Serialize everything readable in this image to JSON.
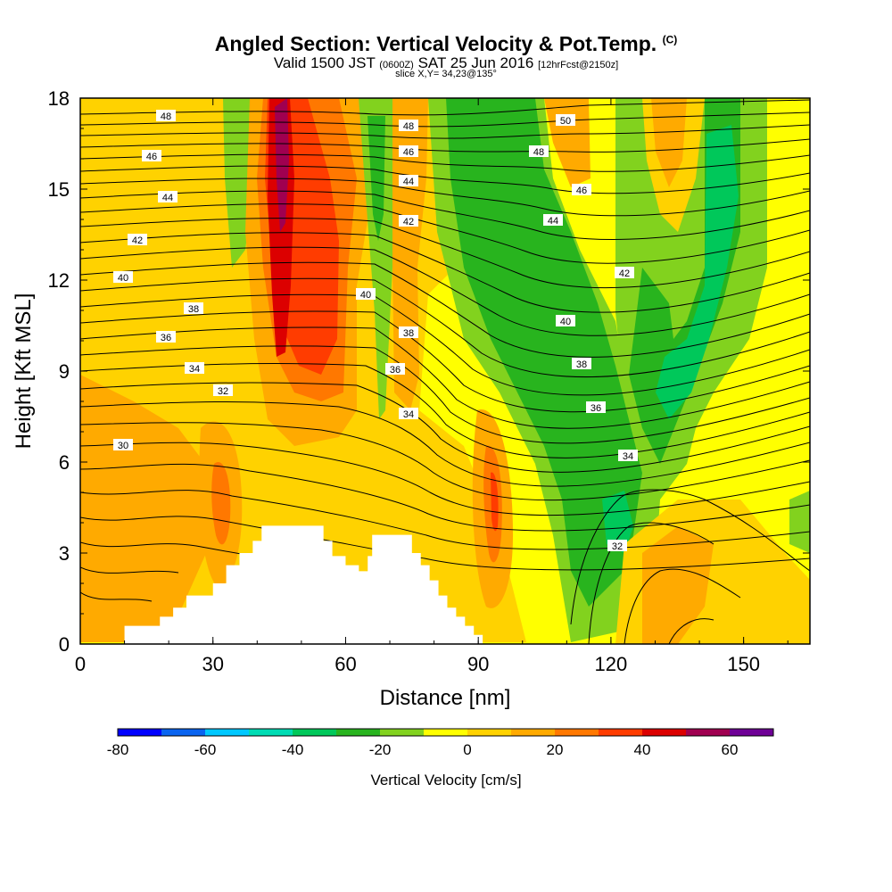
{
  "header": {
    "title": "Angled Section: Vertical Velocity & Pot.Temp.",
    "title_unit": "(C)",
    "valid_prefix": "Valid 1500 JST",
    "valid_utc": "(0600Z)",
    "valid_date": "SAT 25 Jun 2016",
    "forecast": "[12hrFcst@2150z]",
    "slice": "slice X,Y= 34,23@135°"
  },
  "chart_data": {
    "type": "heatmap",
    "xlabel": "Distance [nm]",
    "ylabel": "Height [Kft MSL]",
    "xlim": [
      0,
      165
    ],
    "ylim": [
      0,
      18
    ],
    "x_ticks": [
      "0",
      "30",
      "60",
      "90",
      "120",
      "150"
    ],
    "y_ticks": [
      "0",
      "3",
      "6",
      "9",
      "12",
      "15",
      "18"
    ],
    "colorbar": {
      "label": "Vertical Velocity [cm/s]",
      "range": [
        -80,
        70
      ],
      "ticks": [
        "-80",
        "-60",
        "-40",
        "-20",
        "0",
        "20",
        "40",
        "60"
      ],
      "colors": [
        "#0000ff",
        "#0a64f0",
        "#00c8ff",
        "#00dcb4",
        "#00c85a",
        "#28b41e",
        "#82d21e",
        "#ffff00",
        "#ffd200",
        "#ffaa00",
        "#ff7800",
        "#ff3c00",
        "#dc0000",
        "#a00050",
        "#6e0096"
      ]
    },
    "contour_labels": [
      "48",
      "46",
      "44",
      "42",
      "40",
      "38",
      "36",
      "34",
      "32",
      "30",
      "48",
      "46",
      "44",
      "42",
      "40",
      "38",
      "36",
      "34",
      "50",
      "48",
      "46",
      "44",
      "42",
      "40",
      "38",
      "36",
      "34",
      "32"
    ],
    "terrain_top_kft": [
      0.6,
      0.6,
      0.9,
      1.3,
      1.8,
      2.6,
      3.4,
      3.9,
      3.9,
      3.4,
      2.6,
      2.6,
      3.6,
      3.6,
      2.3,
      1.5,
      0.9,
      0.6,
      0.3,
      0.0
    ]
  }
}
